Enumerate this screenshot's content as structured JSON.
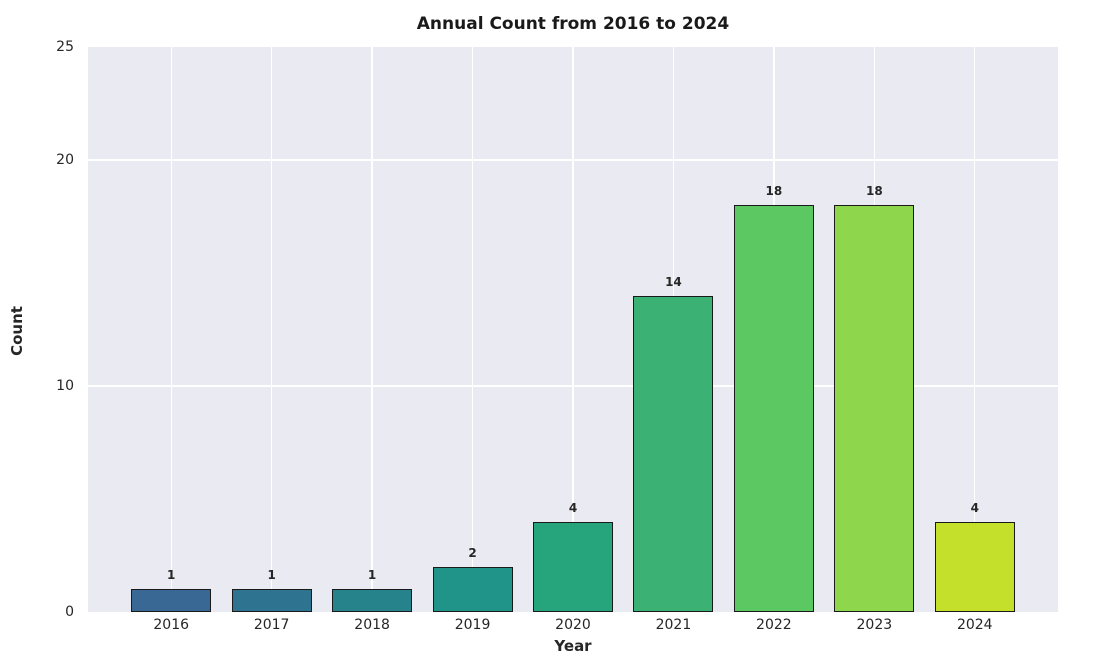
{
  "chart_data": {
    "type": "bar",
    "title": "Annual Count from 2016 to 2024",
    "xlabel": "Year",
    "ylabel": "Count",
    "categories": [
      "2016",
      "2017",
      "2018",
      "2019",
      "2020",
      "2021",
      "2022",
      "2023",
      "2024"
    ],
    "values": [
      1,
      1,
      1,
      2,
      4,
      14,
      18,
      18,
      4
    ],
    "bar_labels": [
      "1",
      "1",
      "1",
      "2",
      "4",
      "14",
      "18",
      "18",
      "4"
    ],
    "bar_colors": [
      "#3a6895",
      "#2e7390",
      "#26838b",
      "#219489",
      "#26a47c",
      "#3bb273",
      "#5bc862",
      "#8ed64b",
      "#c4e02a"
    ],
    "bar_edge_color": "#1a1a1a",
    "ylim": [
      0,
      25
    ],
    "yticks": [
      0,
      10,
      20,
      25
    ],
    "grid": true,
    "grid_color": "#ffffff",
    "plot_background": "#eaeaf2",
    "figure_background": "#ffffff",
    "legend_position": "none"
  }
}
